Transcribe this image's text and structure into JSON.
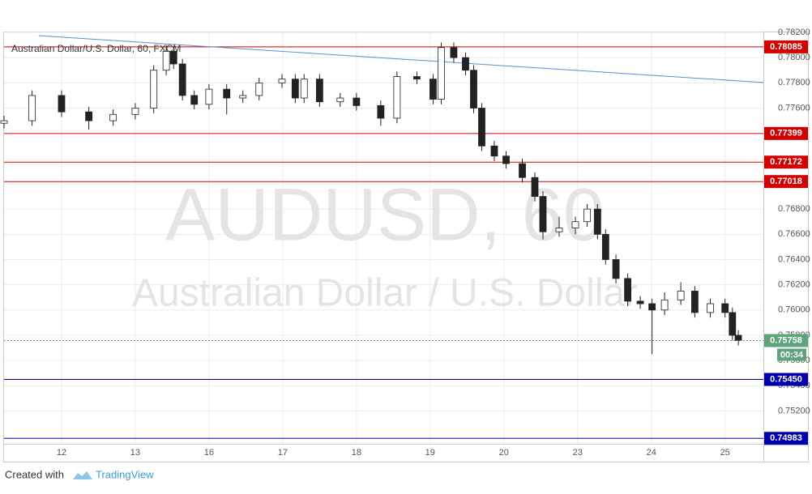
{
  "chart_data": {
    "type": "candlestick",
    "title": "Australian Dollar/U.S. Dollar, 60, FXCM",
    "watermark": "AUDUSD, 60",
    "watermark_subtitle": "Australian Dollar / U.S. Dollar",
    "footer": {
      "prefix": "Created with",
      "brand": "TradingView"
    },
    "x": [
      -0.78,
      -0.4,
      0,
      0.37,
      0.7,
      1.0,
      1.25,
      1.42,
      1.52,
      1.64,
      1.8,
      2.0,
      2.24,
      2.46,
      2.68,
      2.99,
      3.17,
      3.29,
      3.5,
      3.78,
      4.0,
      4.33,
      4.55,
      4.82,
      5.04,
      5.15,
      5.32,
      5.48,
      5.59,
      5.7,
      5.87,
      6.03,
      6.25,
      6.42,
      6.53,
      6.75,
      6.97,
      7.13,
      7.27,
      7.38,
      7.52,
      7.68,
      7.85,
      8.01,
      8.18,
      8.4,
      8.59,
      8.8,
      9.0,
      9.1,
      9.18
    ],
    "open": [
      0.7748,
      0.775,
      0.777,
      0.7757,
      0.775,
      0.7755,
      0.776,
      0.779,
      0.7805,
      0.7795,
      0.777,
      0.7763,
      0.7775,
      0.7768,
      0.777,
      0.778,
      0.7783,
      0.7768,
      0.7783,
      0.7765,
      0.7768,
      0.7762,
      0.7752,
      0.7785,
      0.7783,
      0.7767,
      0.7808,
      0.78,
      0.779,
      0.776,
      0.773,
      0.7722,
      0.7716,
      0.7705,
      0.769,
      0.7662,
      0.7665,
      0.767,
      0.768,
      0.766,
      0.764,
      0.7625,
      0.7607,
      0.7605,
      0.76,
      0.7608,
      0.7615,
      0.7598,
      0.7605,
      0.7598,
      0.758
    ],
    "high": [
      0.7754,
      0.7774,
      0.7774,
      0.7761,
      0.7759,
      0.7764,
      0.7794,
      0.781,
      0.7809,
      0.7799,
      0.7774,
      0.7779,
      0.7779,
      0.7774,
      0.7784,
      0.7787,
      0.7787,
      0.7787,
      0.7787,
      0.7772,
      0.7772,
      0.7766,
      0.7789,
      0.7789,
      0.7787,
      0.7812,
      0.7812,
      0.7804,
      0.7794,
      0.7764,
      0.7734,
      0.7726,
      0.772,
      0.7709,
      0.7694,
      0.7674,
      0.7674,
      0.7684,
      0.7684,
      0.7664,
      0.7644,
      0.7629,
      0.7611,
      0.7609,
      0.7614,
      0.7622,
      0.7619,
      0.7609,
      0.7609,
      0.7602,
      0.7584
    ],
    "low": [
      0.7744,
      0.7746,
      0.7753,
      0.7743,
      0.7746,
      0.7751,
      0.7756,
      0.7786,
      0.7791,
      0.7766,
      0.7759,
      0.7759,
      0.7755,
      0.7764,
      0.7766,
      0.7776,
      0.7764,
      0.7764,
      0.7761,
      0.7761,
      0.7758,
      0.7746,
      0.7748,
      0.7779,
      0.7763,
      0.7763,
      0.7796,
      0.7786,
      0.7756,
      0.7726,
      0.7718,
      0.7712,
      0.7701,
      0.7686,
      0.7656,
      0.7658,
      0.766,
      0.7666,
      0.7656,
      0.7636,
      0.7621,
      0.7603,
      0.7601,
      0.7565,
      0.7596,
      0.7604,
      0.7594,
      0.7594,
      0.7594,
      0.7576,
      0.7572
    ],
    "close": [
      0.775,
      0.777,
      0.7757,
      0.775,
      0.7755,
      0.776,
      0.779,
      0.7805,
      0.7795,
      0.777,
      0.7763,
      0.7775,
      0.7768,
      0.777,
      0.778,
      0.7783,
      0.7768,
      0.7783,
      0.7765,
      0.7768,
      0.7762,
      0.7752,
      0.7785,
      0.7783,
      0.7767,
      0.7808,
      0.78,
      0.779,
      0.776,
      0.773,
      0.7722,
      0.7716,
      0.7705,
      0.769,
      0.7662,
      0.7665,
      0.767,
      0.768,
      0.766,
      0.764,
      0.7625,
      0.7607,
      0.7605,
      0.76,
      0.7608,
      0.7615,
      0.7598,
      0.7605,
      0.7598,
      0.758,
      0.75758
    ],
    "up_color": "#ffffff",
    "down_color": "#222222",
    "xlim": [
      -0.78,
      9.52
    ],
    "xticks": [
      {
        "value": 0,
        "label": "12"
      },
      {
        "value": 1,
        "label": "13"
      },
      {
        "value": 2,
        "label": "16"
      },
      {
        "value": 3,
        "label": "17"
      },
      {
        "value": 4,
        "label": "18"
      },
      {
        "value": 5,
        "label": "19"
      },
      {
        "value": 6,
        "label": "20"
      },
      {
        "value": 7,
        "label": "23"
      },
      {
        "value": 8,
        "label": "24"
      },
      {
        "value": 9,
        "label": "25"
      }
    ],
    "ylim": [
      0.7494,
      0.782
    ],
    "yticks": [
      {
        "value": 0.782,
        "label": "0.78200"
      },
      {
        "value": 0.78,
        "label": "0.78000"
      },
      {
        "value": 0.778,
        "label": "0.77800"
      },
      {
        "value": 0.776,
        "label": "0.77600"
      },
      {
        "value": 0.768,
        "label": "0.76800"
      },
      {
        "value": 0.766,
        "label": "0.76600"
      },
      {
        "value": 0.764,
        "label": "0.76400"
      },
      {
        "value": 0.762,
        "label": "0.76200"
      },
      {
        "value": 0.76,
        "label": "0.76000"
      },
      {
        "value": 0.758,
        "label": "0.75800"
      },
      {
        "value": 0.756,
        "label": "0.75600"
      },
      {
        "value": 0.754,
        "label": "0.75400"
      },
      {
        "value": 0.752,
        "label": "0.75200"
      }
    ],
    "grid": true,
    "levels": [
      {
        "value": 0.78085,
        "color": "#d40000"
      },
      {
        "value": 0.77399,
        "color": "#d40000"
      },
      {
        "value": 0.77172,
        "color": "#d40000"
      },
      {
        "value": 0.77018,
        "color": "#d40000"
      },
      {
        "value": 0.7545,
        "label": "0.75450",
        "color": "#0000b0"
      },
      {
        "value": 0.74983,
        "color": "#0000b0"
      }
    ],
    "last_price": {
      "value": 0.75758,
      "countdown": "00:34",
      "color": "#5ea37a"
    },
    "trendline": {
      "x": [
        -0.31,
        9.52
      ],
      "y": [
        0.78174,
        0.77803
      ],
      "color": "#5b8fd0"
    }
  }
}
